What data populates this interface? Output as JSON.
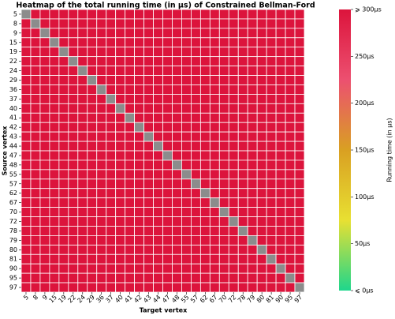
{
  "chart_data": {
    "type": "heatmap",
    "title": "Heatmap of the total running time (in μs) of Constrained Bellman-Ford",
    "x_label": "Target vertex",
    "y_label": "Source vertex",
    "colorbar_label": "Running time (in μs)",
    "categories": [
      "5",
      "8",
      "9",
      "15",
      "19",
      "22",
      "24",
      "29",
      "36",
      "37",
      "40",
      "41",
      "42",
      "43",
      "44",
      "47",
      "48",
      "55",
      "57",
      "62",
      "67",
      "70",
      "72",
      "78",
      "79",
      "80",
      "81",
      "90",
      "95",
      "97"
    ],
    "values": [
      [
        null,
        300,
        300,
        300,
        300,
        300,
        300,
        300,
        300,
        300,
        300,
        300,
        300,
        300,
        300,
        300,
        300,
        300,
        300,
        300,
        300,
        300,
        300,
        300,
        300,
        300,
        300,
        300,
        300,
        300
      ],
      [
        300,
        null,
        300,
        300,
        300,
        300,
        300,
        300,
        300,
        300,
        300,
        300,
        300,
        300,
        300,
        300,
        300,
        300,
        300,
        300,
        300,
        300,
        300,
        300,
        300,
        300,
        300,
        300,
        300,
        300
      ],
      [
        300,
        300,
        null,
        300,
        300,
        300,
        300,
        300,
        300,
        300,
        300,
        300,
        300,
        300,
        300,
        300,
        300,
        300,
        300,
        300,
        300,
        300,
        300,
        300,
        300,
        300,
        300,
        300,
        300,
        300
      ],
      [
        300,
        300,
        300,
        null,
        300,
        300,
        300,
        300,
        300,
        300,
        300,
        300,
        300,
        300,
        300,
        300,
        300,
        300,
        300,
        300,
        300,
        300,
        300,
        300,
        300,
        300,
        300,
        300,
        300,
        300
      ],
      [
        300,
        300,
        300,
        300,
        null,
        300,
        300,
        300,
        300,
        300,
        300,
        300,
        300,
        300,
        300,
        300,
        300,
        300,
        300,
        300,
        300,
        300,
        300,
        300,
        300,
        300,
        300,
        300,
        300,
        300
      ],
      [
        300,
        300,
        300,
        300,
        300,
        null,
        300,
        300,
        300,
        300,
        300,
        300,
        300,
        300,
        300,
        300,
        300,
        300,
        300,
        300,
        300,
        300,
        300,
        300,
        300,
        300,
        300,
        300,
        300,
        300
      ],
      [
        300,
        300,
        300,
        300,
        300,
        300,
        null,
        300,
        300,
        300,
        300,
        300,
        300,
        300,
        300,
        300,
        300,
        300,
        300,
        300,
        300,
        300,
        300,
        300,
        300,
        300,
        300,
        300,
        300,
        300
      ],
      [
        300,
        300,
        300,
        300,
        300,
        300,
        300,
        null,
        300,
        300,
        300,
        300,
        300,
        300,
        300,
        300,
        300,
        300,
        300,
        300,
        300,
        300,
        300,
        300,
        300,
        300,
        300,
        300,
        300,
        300
      ],
      [
        300,
        300,
        300,
        300,
        300,
        300,
        300,
        300,
        null,
        300,
        300,
        300,
        300,
        300,
        300,
        300,
        300,
        300,
        300,
        300,
        300,
        300,
        300,
        300,
        300,
        300,
        300,
        300,
        300,
        300
      ],
      [
        300,
        300,
        300,
        300,
        300,
        300,
        300,
        300,
        300,
        null,
        300,
        300,
        300,
        300,
        300,
        300,
        300,
        300,
        300,
        300,
        300,
        300,
        300,
        300,
        300,
        300,
        300,
        300,
        300,
        300
      ],
      [
        300,
        300,
        300,
        300,
        300,
        300,
        300,
        300,
        300,
        300,
        null,
        300,
        300,
        300,
        300,
        300,
        300,
        300,
        300,
        300,
        300,
        300,
        300,
        300,
        300,
        300,
        300,
        300,
        300,
        300
      ],
      [
        300,
        300,
        300,
        300,
        300,
        300,
        300,
        300,
        300,
        300,
        300,
        null,
        300,
        300,
        300,
        300,
        300,
        300,
        300,
        300,
        300,
        300,
        300,
        300,
        300,
        300,
        300,
        300,
        300,
        300
      ],
      [
        300,
        300,
        300,
        300,
        300,
        300,
        300,
        300,
        300,
        300,
        300,
        300,
        null,
        300,
        300,
        300,
        300,
        300,
        300,
        300,
        300,
        300,
        300,
        300,
        300,
        300,
        300,
        300,
        300,
        300
      ],
      [
        300,
        300,
        300,
        300,
        300,
        300,
        300,
        300,
        300,
        300,
        300,
        300,
        300,
        null,
        300,
        300,
        300,
        300,
        300,
        300,
        300,
        300,
        300,
        300,
        300,
        300,
        300,
        300,
        300,
        300
      ],
      [
        300,
        300,
        300,
        300,
        300,
        300,
        300,
        300,
        300,
        300,
        300,
        300,
        300,
        300,
        null,
        300,
        300,
        300,
        300,
        300,
        300,
        300,
        300,
        300,
        300,
        300,
        300,
        300,
        300,
        300
      ],
      [
        300,
        300,
        300,
        300,
        300,
        300,
        300,
        300,
        300,
        300,
        300,
        300,
        300,
        300,
        300,
        null,
        300,
        300,
        300,
        300,
        300,
        300,
        300,
        300,
        300,
        300,
        300,
        300,
        300,
        300
      ],
      [
        300,
        300,
        300,
        300,
        300,
        300,
        300,
        300,
        300,
        300,
        300,
        300,
        300,
        300,
        300,
        300,
        null,
        300,
        300,
        300,
        300,
        300,
        300,
        300,
        300,
        300,
        300,
        300,
        300,
        300
      ],
      [
        300,
        300,
        300,
        300,
        300,
        300,
        300,
        300,
        300,
        300,
        300,
        300,
        300,
        300,
        300,
        300,
        300,
        null,
        300,
        300,
        300,
        300,
        300,
        300,
        300,
        300,
        300,
        300,
        300,
        300
      ],
      [
        300,
        300,
        300,
        300,
        300,
        300,
        300,
        300,
        300,
        300,
        300,
        300,
        300,
        300,
        300,
        300,
        300,
        300,
        null,
        300,
        300,
        300,
        300,
        300,
        300,
        300,
        300,
        300,
        300,
        300
      ],
      [
        300,
        300,
        300,
        300,
        300,
        300,
        300,
        300,
        300,
        300,
        300,
        300,
        300,
        300,
        300,
        300,
        300,
        300,
        300,
        null,
        300,
        300,
        300,
        300,
        300,
        300,
        300,
        300,
        300,
        300
      ],
      [
        300,
        300,
        300,
        300,
        300,
        300,
        300,
        300,
        300,
        300,
        300,
        300,
        300,
        300,
        300,
        300,
        300,
        300,
        300,
        300,
        null,
        300,
        300,
        300,
        300,
        300,
        300,
        300,
        300,
        300
      ],
      [
        300,
        300,
        300,
        300,
        300,
        300,
        300,
        300,
        300,
        300,
        300,
        300,
        300,
        300,
        300,
        300,
        300,
        300,
        300,
        300,
        300,
        null,
        300,
        300,
        300,
        300,
        300,
        300,
        300,
        300
      ],
      [
        300,
        300,
        300,
        300,
        300,
        300,
        300,
        300,
        300,
        300,
        300,
        300,
        300,
        300,
        300,
        300,
        300,
        300,
        300,
        300,
        300,
        300,
        null,
        300,
        300,
        300,
        300,
        300,
        300,
        300
      ],
      [
        300,
        300,
        300,
        300,
        300,
        300,
        300,
        300,
        300,
        300,
        300,
        300,
        300,
        300,
        300,
        300,
        300,
        300,
        300,
        300,
        300,
        300,
        300,
        null,
        300,
        300,
        300,
        300,
        300,
        300
      ],
      [
        300,
        300,
        300,
        300,
        300,
        300,
        300,
        300,
        300,
        300,
        300,
        300,
        300,
        300,
        300,
        300,
        300,
        300,
        300,
        300,
        300,
        300,
        300,
        300,
        null,
        300,
        300,
        300,
        300,
        300
      ],
      [
        300,
        300,
        300,
        300,
        300,
        300,
        300,
        300,
        300,
        300,
        300,
        300,
        300,
        300,
        300,
        300,
        300,
        300,
        300,
        300,
        300,
        300,
        300,
        300,
        300,
        null,
        300,
        300,
        300,
        300
      ],
      [
        300,
        300,
        300,
        300,
        300,
        300,
        300,
        300,
        300,
        300,
        300,
        300,
        300,
        300,
        300,
        300,
        300,
        300,
        300,
        300,
        300,
        300,
        300,
        300,
        300,
        300,
        null,
        300,
        300,
        300
      ],
      [
        300,
        300,
        300,
        300,
        300,
        300,
        300,
        300,
        300,
        300,
        300,
        300,
        300,
        300,
        300,
        300,
        300,
        300,
        300,
        300,
        300,
        300,
        300,
        300,
        300,
        300,
        300,
        null,
        300,
        300
      ],
      [
        300,
        300,
        300,
        300,
        300,
        300,
        300,
        300,
        300,
        300,
        300,
        300,
        300,
        300,
        300,
        300,
        300,
        300,
        300,
        300,
        300,
        300,
        300,
        300,
        300,
        300,
        300,
        300,
        null,
        300
      ],
      [
        300,
        300,
        300,
        300,
        300,
        300,
        300,
        300,
        300,
        300,
        300,
        300,
        300,
        300,
        300,
        300,
        300,
        300,
        300,
        300,
        300,
        300,
        300,
        300,
        300,
        300,
        300,
        300,
        300,
        null
      ]
    ],
    "null_color": "#8c8c8c",
    "colormap": [
      "#1ed68c",
      "#e8e032",
      "#d9a022",
      "#ec5070",
      "#dc143c"
    ],
    "clim": [
      0,
      300
    ],
    "cticks": [
      {
        "value": 0,
        "label": "⩽ 0μs"
      },
      {
        "value": 50,
        "label": "50μs"
      },
      {
        "value": 100,
        "label": "100μs"
      },
      {
        "value": 150,
        "label": "150μs"
      },
      {
        "value": 200,
        "label": "200μs"
      },
      {
        "value": 250,
        "label": "250μs"
      },
      {
        "value": 300,
        "label": "⩾ 300μs"
      }
    ]
  }
}
